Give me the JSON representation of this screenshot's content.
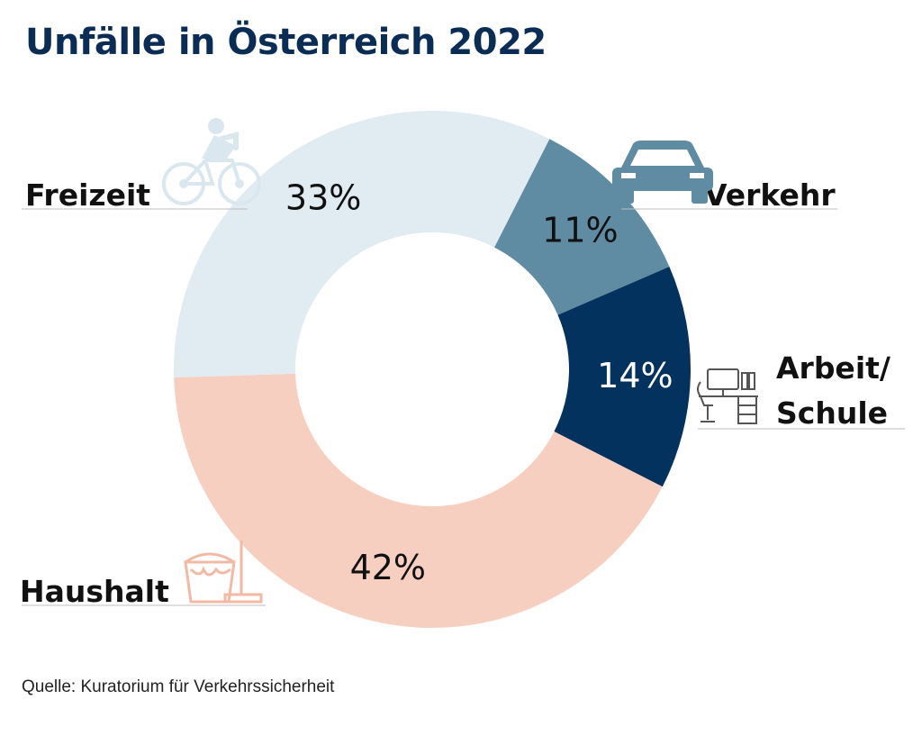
{
  "title": "Unfälle in Österreich 2022",
  "source": "Quelle: Kuratorium für Verkehrssicherheit",
  "colors": {
    "title": "#0b2d55",
    "label_dark_text": "#111111",
    "label_light_text": "#ffffff"
  },
  "chart_data": {
    "type": "pie",
    "donut": true,
    "title": "Unfälle in Österreich 2022",
    "slices": [
      {
        "label": "Verkehr",
        "value": 11,
        "display": "11%",
        "color": "#5f8ca3",
        "icon": "car-icon"
      },
      {
        "label": "Arbeit/ Schule",
        "label_lines": [
          "Arbeit/",
          "Schule"
        ],
        "value": 14,
        "display": "14%",
        "color": "#03325f",
        "icon": "desk-icon"
      },
      {
        "label": "Haushalt",
        "value": 42,
        "display": "42%",
        "color": "#f7cfc0",
        "icon": "bucket-mop-icon"
      },
      {
        "label": "Freizeit",
        "value": 33,
        "display": "33%",
        "color": "#e1ebf2",
        "icon": "cyclist-icon"
      }
    ]
  }
}
